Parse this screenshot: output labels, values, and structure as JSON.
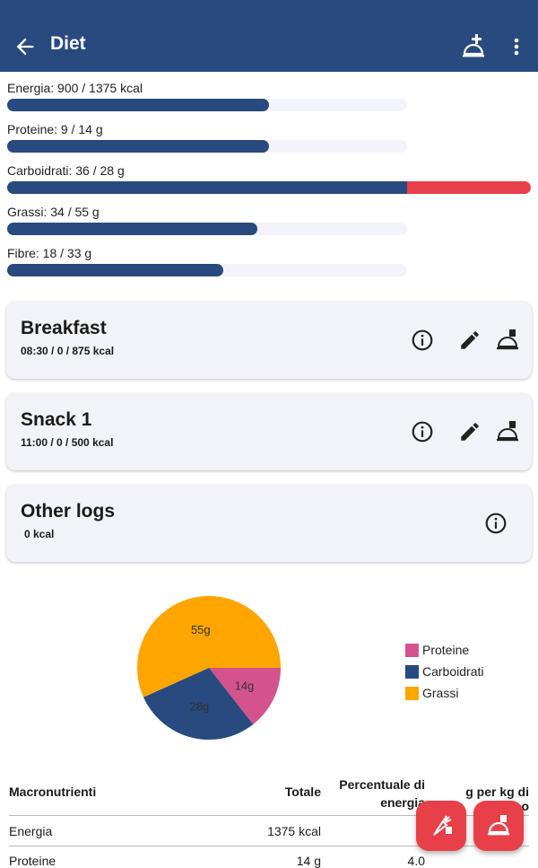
{
  "appbar": {
    "title": "Diet",
    "back_icon": "arrow-left-icon",
    "add_icon": "add-meal-icon",
    "more_icon": "more-vert-icon"
  },
  "colors": {
    "primary": "#284a7e",
    "accent": "#e84048",
    "proteine": "#d4538c",
    "carboidrati": "#284a7e",
    "grassi": "#ffa500"
  },
  "progress": [
    {
      "label": "Energia: 900 / 1375 kcal",
      "fraction": 0.655
    },
    {
      "label": "Proteine: 9 / 14 g",
      "fraction": 0.655
    },
    {
      "label": "Carboidrati: 36 / 28 g",
      "fraction": 1.0,
      "over": 0.31
    },
    {
      "label": "Grassi: 34 / 55 g",
      "fraction": 0.626
    },
    {
      "label": "Fibre: 18 / 33 g",
      "fraction": 0.54
    }
  ],
  "meals": [
    {
      "name": "Breakfast",
      "sub": "08:30 /  0 / 875 kcal"
    },
    {
      "name": "Snack 1",
      "sub": "11:00 /  0 / 500 kcal"
    },
    {
      "name": "Other logs",
      "sub": " 0 kcal"
    }
  ],
  "chart_data": {
    "type": "pie",
    "series": [
      {
        "name": "Proteine",
        "value": 14,
        "label": "14g"
      },
      {
        "name": "Carboidrati",
        "value": 28,
        "label": "28g"
      },
      {
        "name": "Grassi",
        "value": 55,
        "label": "55g"
      }
    ],
    "legend_position": "right"
  },
  "table": {
    "headers": [
      "Macronutrienti",
      "Totale",
      "Percentuale di energia",
      "g per kg di corpo"
    ],
    "rows": [
      [
        "Energia",
        "1375 kcal",
        "",
        ""
      ],
      [
        "Proteine",
        "14 g",
        "4.0",
        ""
      ]
    ]
  }
}
